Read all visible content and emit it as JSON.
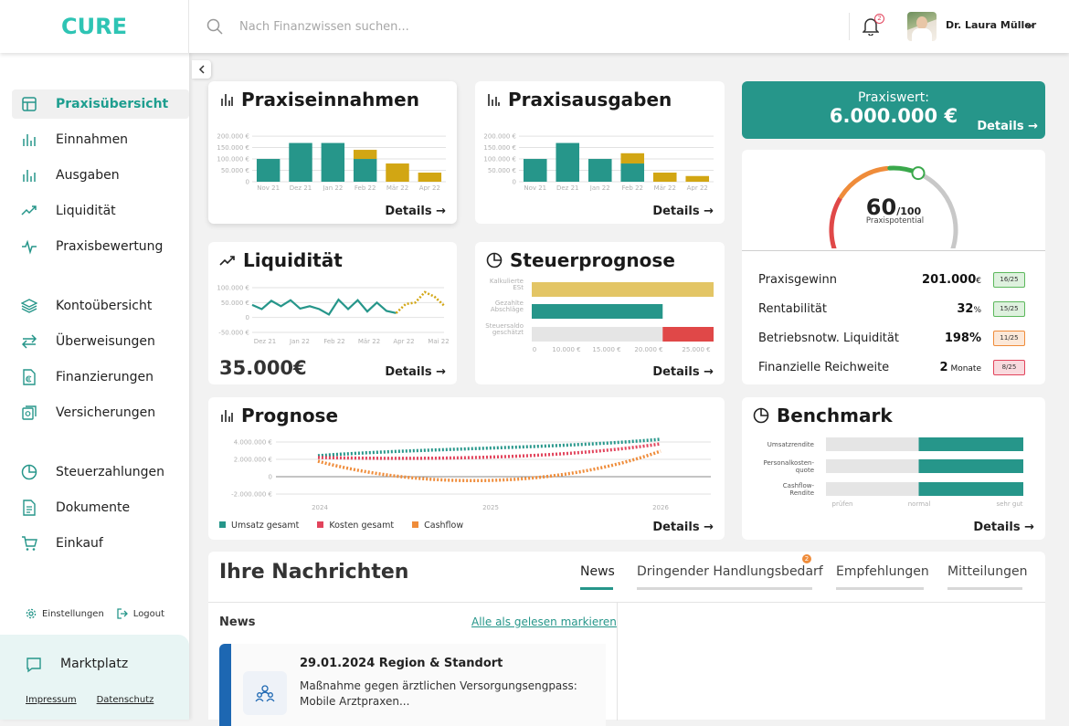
{
  "brand": {
    "logo": "CURE"
  },
  "search": {
    "placeholder": "Nach Finanzwissen suchen..."
  },
  "notifications": {
    "count": "2"
  },
  "user": {
    "name": "Dr. Laura Müller"
  },
  "sidebar": {
    "items": [
      {
        "label": "Praxisübersicht",
        "icon": "overview-icon"
      },
      {
        "label": "Einnahmen",
        "icon": "bar-chart-icon"
      },
      {
        "label": "Ausgaben",
        "icon": "bar-chart-icon"
      },
      {
        "label": "Liquidität",
        "icon": "trend-icon"
      },
      {
        "label": "Praxisbewertung",
        "icon": "pulse-icon"
      },
      {
        "label": "Kontoübersicht",
        "icon": "layers-icon"
      },
      {
        "label": "Überweisungen",
        "icon": "transfer-icon"
      },
      {
        "label": "Finanzierungen",
        "icon": "document-euro-icon"
      },
      {
        "label": "Versicherungen",
        "icon": "insurance-icon"
      },
      {
        "label": "Steuerzahlungen",
        "icon": "pie-icon"
      },
      {
        "label": "Dokumente",
        "icon": "document-icon"
      },
      {
        "label": "Einkauf",
        "icon": "cart-icon"
      }
    ],
    "settings": "Einstellungen",
    "logout": "Logout",
    "marketplace": "Marktplatz",
    "impressum": "Impressum",
    "datenschutz": "Datenschutz"
  },
  "details_label": "Details",
  "einnahmen": {
    "title": "Praxiseinnahmen",
    "chart_data": {
      "type": "bar",
      "categories": [
        "Nov 21",
        "Dez 21",
        "Jan 22",
        "Feb 22",
        "Mär 22",
        "Apr 22"
      ],
      "series": [
        {
          "values": [
            100000,
            170000,
            170000,
            100000,
            0,
            0
          ]
        },
        {
          "values": [
            0,
            0,
            0,
            40000,
            80000,
            40000
          ]
        }
      ],
      "ylim": [
        0,
        200000
      ],
      "yticks": [
        "200.000 €",
        "150.000 €",
        "100.000 €",
        "50.000 €",
        "0"
      ],
      "colors": [
        "#26968a",
        "#d2a613"
      ]
    }
  },
  "ausgaben": {
    "title": "Praxisausgaben",
    "chart_data": {
      "type": "bar",
      "categories": [
        "Nov 21",
        "Dez 21",
        "Jan 22",
        "Feb 22",
        "Mär 22",
        "Apr 22"
      ],
      "series": [
        {
          "values": [
            100000,
            170000,
            100000,
            80000,
            0,
            0
          ]
        },
        {
          "values": [
            0,
            0,
            0,
            45000,
            40000,
            25000
          ]
        }
      ],
      "ylim": [
        0,
        200000
      ],
      "yticks": [
        "200.000 €",
        "150.000 €",
        "100.000 €",
        "50.000 €",
        "0"
      ],
      "colors": [
        "#26968a",
        "#d2a613"
      ]
    }
  },
  "liquiditaet": {
    "title": "Liquidität",
    "value": "35.000€",
    "chart_data": {
      "type": "line",
      "categories": [
        "Dez 21",
        "Jan 22",
        "Feb 22",
        "Mär 22",
        "Apr 22",
        "Mai 22"
      ],
      "yticks": [
        "100.000 €",
        "50.000 €",
        "0",
        "-50.000 €"
      ],
      "ylim": [
        -50000,
        100000
      ],
      "actual": [
        42000,
        28000,
        56000,
        38000,
        58000,
        30000,
        38000,
        28000,
        10000,
        60000,
        28000,
        58000,
        20000,
        50000,
        22000,
        15000
      ],
      "forecast": [
        15000,
        45000,
        50000,
        85000,
        70000,
        40000
      ]
    }
  },
  "steuer": {
    "title": "Steuerprognose",
    "chart_data": {
      "type": "bar",
      "categories": [
        "Kalkulierte ESt",
        "Gezahlte Abschläge",
        "Steuersaldo geschätzt"
      ],
      "values": [
        25000,
        18000,
        25000
      ],
      "red_from": 18000,
      "xticks": [
        "0",
        "10.000 €",
        "15.000 €",
        "20.000 €",
        "25.000 €"
      ],
      "xlim": [
        0,
        25000
      ]
    }
  },
  "praxiswert": {
    "label": "Praxiswert:",
    "value": "6.000.000 €"
  },
  "gauge": {
    "value": "60",
    "max": "/100",
    "caption": "Praxispotential",
    "level": 0.6
  },
  "kpis": [
    {
      "label": "Praxisgewinn",
      "value": "201.000",
      "unit": "€",
      "badge": "16/25",
      "color": "#5cb85c"
    },
    {
      "label": "Rentabilität",
      "value": "32",
      "unit": "%",
      "badge": "15/25",
      "color": "#5cb85c"
    },
    {
      "label": "Betriebsnotw. Liquidität",
      "value": "198%",
      "unit": "",
      "badge": "11/25",
      "color": "#ef8c3a"
    },
    {
      "label": "Finanzielle Reichweite",
      "value": "2",
      "unit": " Monate",
      "badge": "8/25",
      "color": "#e2445c"
    }
  ],
  "prognose": {
    "title": "Prognose",
    "chart_data": {
      "type": "line",
      "x": [
        "2024",
        "2025",
        "2026"
      ],
      "yticks": [
        "4.000.000 €",
        "2.000.000 €",
        "0",
        "-2.000.000 €"
      ],
      "series": [
        {
          "name": "Umsatz gesamt",
          "color": "#26968a"
        },
        {
          "name": "Kosten gesamt",
          "color": "#e2445c"
        },
        {
          "name": "Cashflow",
          "color": "#ef8c3a"
        }
      ]
    }
  },
  "benchmark": {
    "title": "Benchmark",
    "chart_data": {
      "type": "bar",
      "categories": [
        "Umsatzrendite",
        "Personalkosten-quote",
        "Cashflow-Rendite"
      ],
      "values": [
        0.85,
        0.85,
        0.85
      ],
      "xticks": [
        "prüfen",
        "normal",
        "sehr gut"
      ]
    }
  },
  "messages": {
    "title": "Ihre Nachrichten",
    "tabs": [
      "News",
      "Dringender Handlungsbedarf",
      "Empfehlungen",
      "Mitteilungen"
    ],
    "urgent_count": "2",
    "section": "News",
    "mark_read": "Alle als gelesen markieren",
    "item": {
      "title": "29.01.2024 Region & Standort",
      "text": "Maßnahme gegen ärztlichen Versorgungsengpass: Mobile Arztpraxen..."
    }
  }
}
